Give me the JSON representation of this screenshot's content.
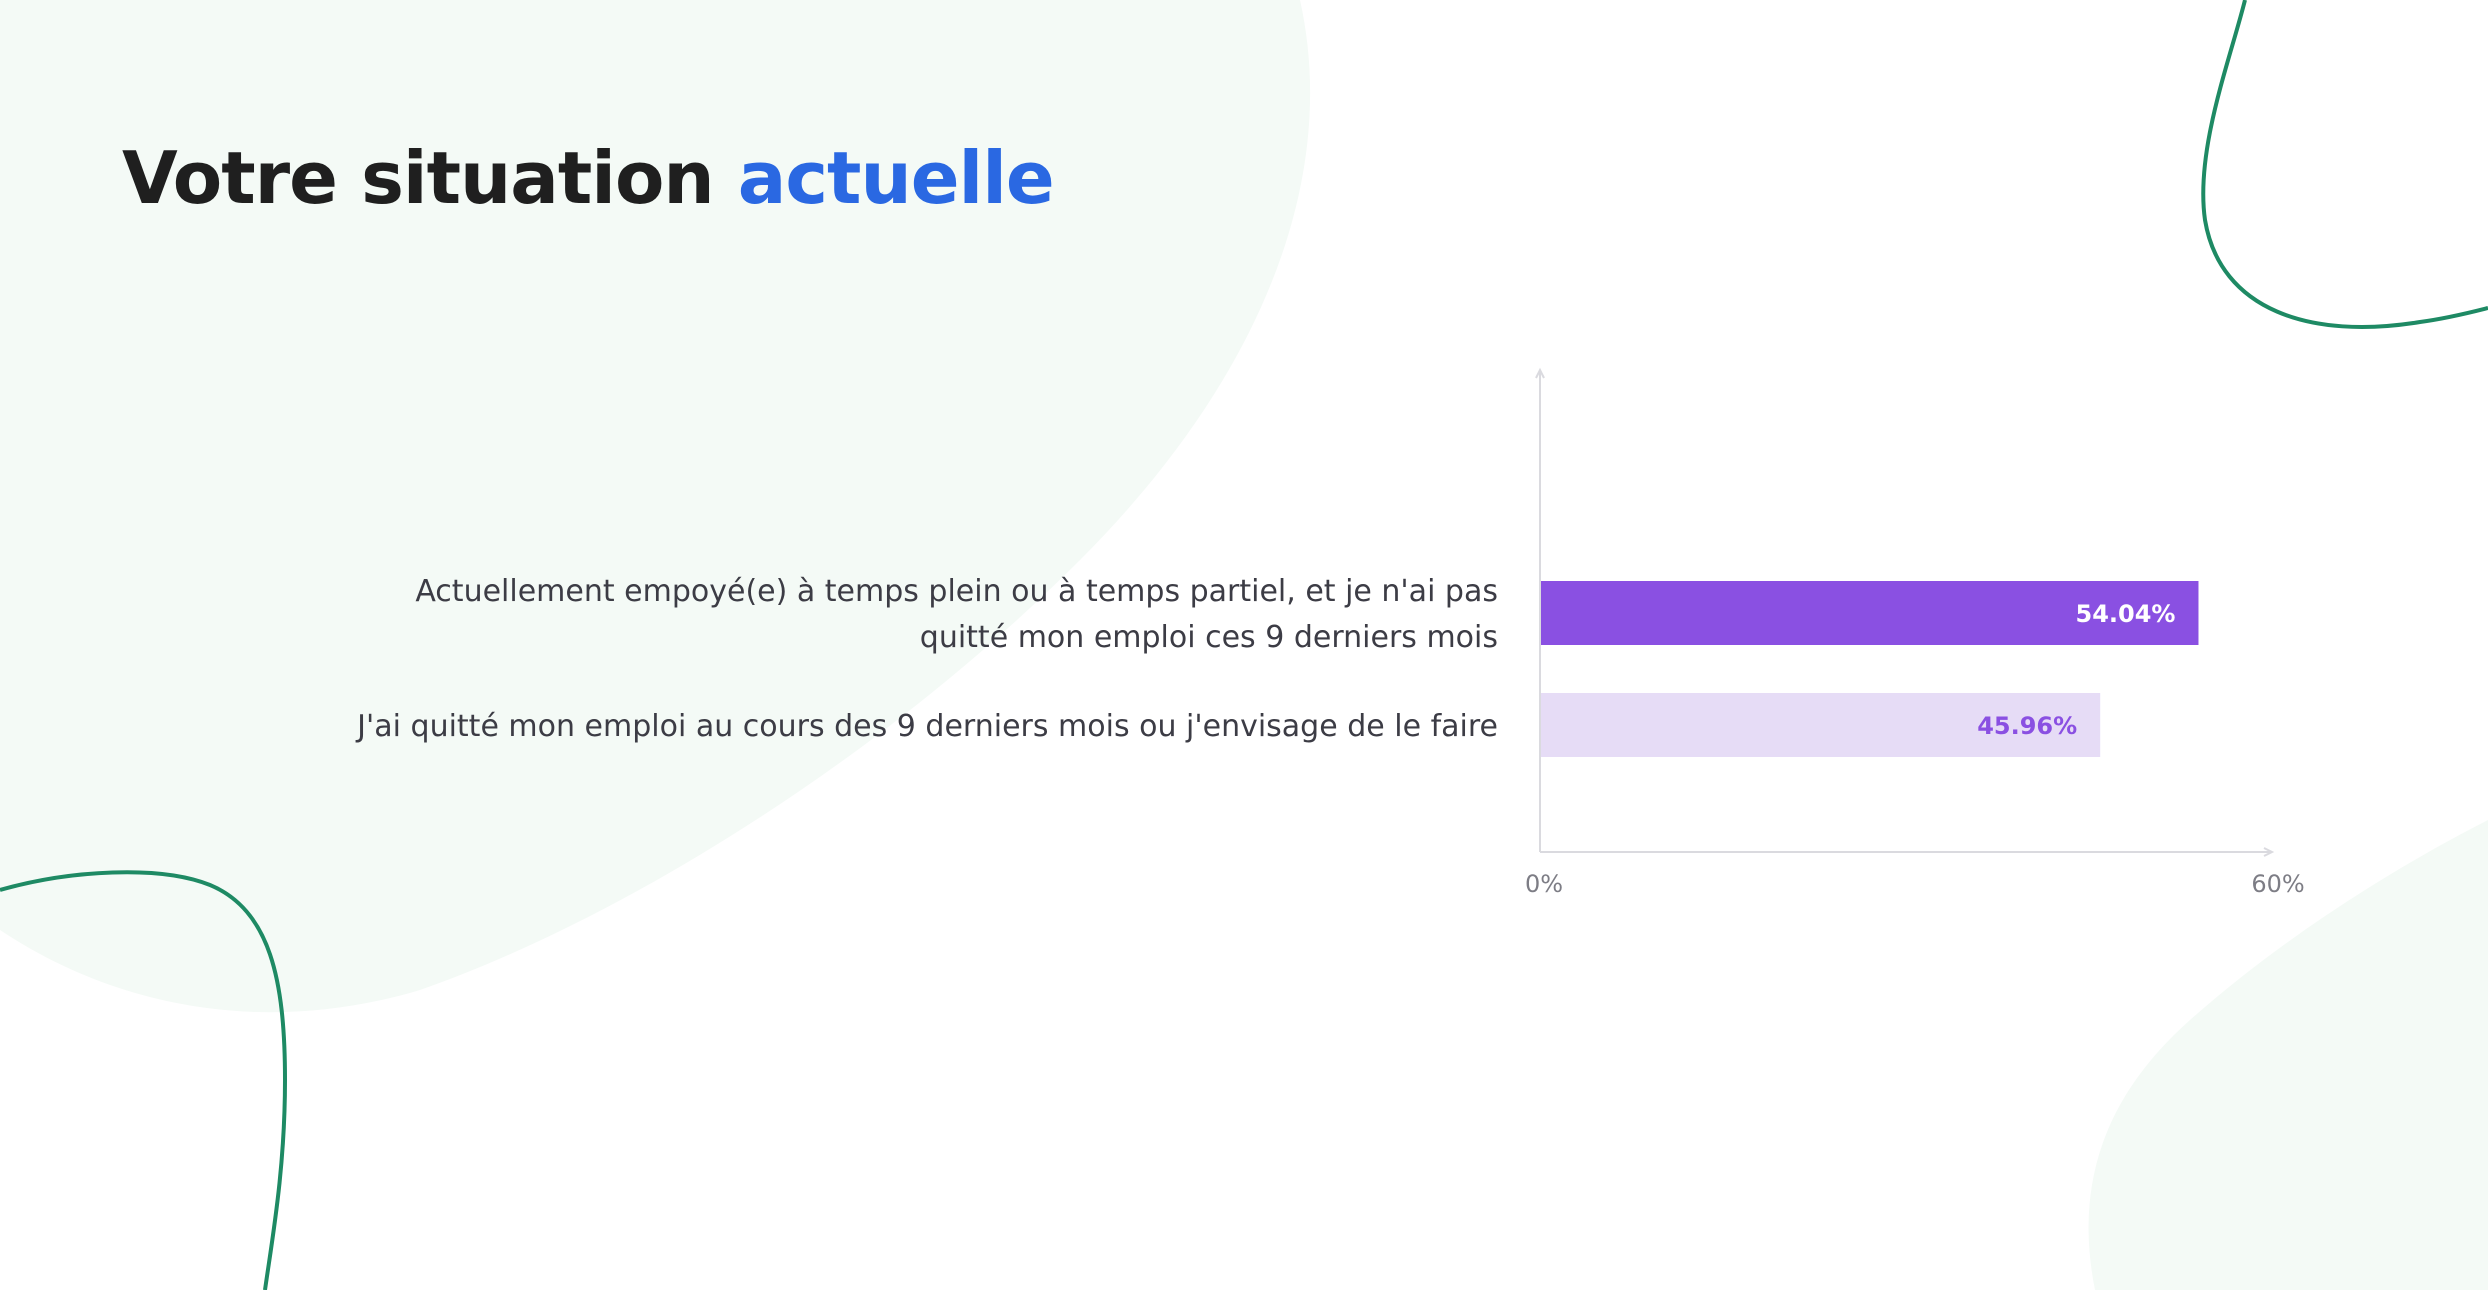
{
  "title": {
    "main": "Votre situation",
    "accent": "actuelle"
  },
  "colors": {
    "title_text": "#1f1f1f",
    "title_accent": "#2a68e2",
    "bar_primary": "#8a50e2",
    "bar_secondary": "#e6dcf6",
    "label_on_light": "#8a50e2",
    "label_on_dark": "#ffffff",
    "category_text": "#3c3c45",
    "tick_text": "#7d7d85",
    "axis": "#dadadf",
    "blob": "#f4faf6",
    "curve": "#1e8a64"
  },
  "chart_data": {
    "type": "bar",
    "orientation": "horizontal",
    "categories": [
      "Actuellement empoyé(e) à temps plein ou à temps partiel, et je n'ai pas quitté mon emploi ces 9 derniers mois",
      "J'ai quitté mon emploi au cours des 9 derniers mois ou j'envisage de le faire"
    ],
    "category_lines": [
      [
        "Actuellement empoyé(e) à temps plein ou à temps partiel, et je n'ai pas",
        "quitté mon emploi ces 9 derniers mois"
      ],
      [
        "J'ai quitté mon emploi au cours des 9 derniers mois ou j'envisage de le faire"
      ]
    ],
    "values": [
      54.04,
      45.96
    ],
    "value_labels": [
      "54.04%",
      "45.96%"
    ],
    "xlim": [
      0,
      60
    ],
    "x_ticks": [
      "0%",
      "60%"
    ],
    "xlabel": "",
    "ylabel": "",
    "grid": false
  }
}
